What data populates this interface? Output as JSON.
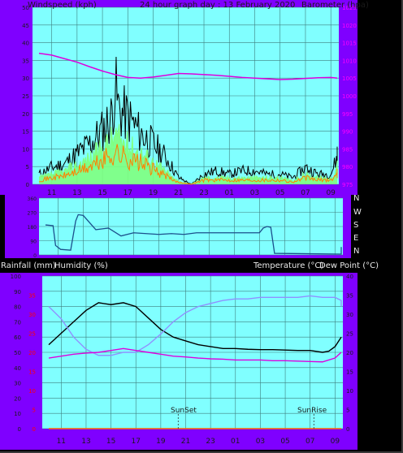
{
  "header": {
    "left": "Windspeed (kph)",
    "title": "24 hour graph day : 13 February 2020",
    "right": "Barometer (hpa)"
  },
  "bottom_header": {
    "rain_label": "Rainfall (mm)",
    "humidity_label": "Humidity (%)",
    "temp_label": "Temperature (°C)",
    "dew_label": "Dew Point (°C)"
  },
  "compass_labels": [
    "N",
    "W",
    "S",
    "E",
    "N"
  ],
  "x_ticks": [
    "11",
    "13",
    "15",
    "17",
    "19",
    "21",
    "23",
    "01",
    "03",
    "05",
    "07",
    "09"
  ],
  "events": {
    "sunset": "SunSet",
    "sunrise": "SunRise"
  },
  "colors": {
    "background_frame": "#7f00ff",
    "plot_bg": "#80ffff",
    "grid": "#3f7f7f",
    "wind_gust": "#000000",
    "wind_avg": "#7fff7f",
    "wind_low": "#ff8000",
    "barometer": "#dd00dd",
    "direction": "#1c4f8c",
    "temperature": "#000000",
    "humidity": "#9090ff",
    "dew_point": "#dd00dd",
    "rain_axis": "#ff0000"
  },
  "chart_data": [
    {
      "type": "line",
      "name": "wind-barometer",
      "x_ticks": [
        "11",
        "13",
        "15",
        "17",
        "19",
        "21",
        "23",
        "01",
        "03",
        "05",
        "07",
        "09"
      ],
      "left_axis": {
        "label": "Windspeed (kph)",
        "ticks": [
          0,
          5,
          10,
          15,
          20,
          25,
          30,
          35,
          40,
          45,
          50
        ],
        "ylim": [
          0,
          50
        ]
      },
      "right_axis": {
        "label": "Barometer (hpa)",
        "ticks": [
          975,
          980,
          985,
          990,
          995,
          1000,
          1005,
          1010,
          1015,
          1020,
          1025
        ],
        "ylim": [
          975,
          1025
        ]
      },
      "series": [
        {
          "name": "gust",
          "hours": [
            0,
            1,
            2,
            3,
            4,
            5,
            5.7,
            6,
            6.3,
            7,
            8,
            9,
            10,
            10.5,
            11,
            12,
            13,
            14,
            15,
            16,
            17,
            18,
            19,
            20,
            21,
            22,
            23,
            24
          ],
          "values": [
            3,
            5,
            6,
            9,
            12,
            16,
            20,
            29,
            22,
            20,
            15,
            12,
            8,
            5,
            2,
            0,
            3,
            4,
            3,
            4,
            4,
            3,
            3,
            2,
            5,
            3,
            3,
            13
          ]
        },
        {
          "name": "average",
          "hours": [
            0,
            1,
            2,
            3,
            4,
            5,
            6,
            7,
            8,
            9,
            10,
            10.5,
            11,
            12,
            13,
            14,
            15,
            16,
            17,
            18,
            19,
            20,
            21,
            22,
            23,
            24
          ],
          "values": [
            2,
            3,
            4,
            6,
            8,
            11,
            15,
            12,
            10,
            7,
            4,
            2,
            1,
            0,
            2,
            2,
            2,
            2,
            2,
            2,
            2,
            1,
            3,
            2,
            2,
            7
          ]
        },
        {
          "name": "barometer",
          "hours": [
            0,
            1,
            2,
            3,
            4,
            5,
            6,
            7,
            8,
            9,
            10,
            11,
            12,
            13,
            14,
            15,
            16,
            17,
            18,
            19,
            20,
            21,
            22,
            23,
            24
          ],
          "values": [
            1012,
            1011.5,
            1010.5,
            1009.5,
            1008.2,
            1007,
            1006,
            1005.2,
            1005,
            1005.3,
            1005.8,
            1006.3,
            1006.2,
            1006,
            1005.8,
            1005.5,
            1005.2,
            1005,
            1004.8,
            1004.6,
            1004.7,
            1004.9,
            1005.1,
            1005.2,
            1005
          ]
        }
      ]
    },
    {
      "type": "line",
      "name": "wind-direction",
      "y_ticks": [
        0,
        90,
        180,
        270,
        360
      ],
      "ylim": [
        0,
        360
      ],
      "compass": [
        "N",
        "W",
        "S",
        "E",
        "N"
      ],
      "series": [
        {
          "name": "direction",
          "hours": [
            0,
            0.6,
            0.8,
            1.2,
            2,
            2.4,
            2.6,
            3,
            4,
            5,
            6,
            7,
            8,
            9,
            10,
            11,
            12,
            13,
            14,
            15,
            16,
            17,
            17.3,
            17.6,
            17.9,
            18.2,
            23.5,
            23.6,
            24
          ],
          "values": [
            190,
            185,
            60,
            35,
            30,
            215,
            255,
            250,
            160,
            170,
            120,
            140,
            135,
            130,
            135,
            130,
            140,
            140,
            140,
            140,
            140,
            140,
            170,
            180,
            175,
            10,
            5,
            45,
            50
          ]
        }
      ]
    },
    {
      "type": "line",
      "name": "temp-humidity",
      "left_axis": {
        "labels": [
          "Rainfall (mm)",
          "Humidity (%)"
        ],
        "humidity_ticks": [
          0,
          10,
          20,
          30,
          40,
          50,
          60,
          70,
          80,
          90,
          100
        ],
        "rain_ticks": [
          0,
          5,
          10,
          15,
          20,
          25,
          30,
          35
        ]
      },
      "right_axis": {
        "labels": [
          "Temperature (°C)",
          "Dew Point (°C)"
        ],
        "ticks": [
          0,
          5,
          10,
          15,
          20,
          25,
          30,
          35,
          40
        ],
        "ylim": [
          0,
          40
        ]
      },
      "series": [
        {
          "name": "temperature",
          "hours": [
            0,
            1,
            2,
            3,
            4,
            5,
            6,
            7,
            8,
            9,
            10,
            11,
            12,
            13,
            14,
            15,
            16,
            17,
            18,
            19,
            20,
            21,
            22,
            22.5,
            23,
            24
          ],
          "values": [
            22,
            25,
            28,
            31,
            33,
            32.5,
            33,
            32,
            29,
            26,
            24,
            23,
            22,
            21.5,
            21,
            21,
            20.8,
            20.7,
            20.7,
            20.6,
            20.5,
            20.5,
            20,
            20.3,
            21.5,
            24
          ]
        },
        {
          "name": "humidity",
          "hours": [
            0,
            1,
            2,
            3,
            4,
            5,
            6,
            7,
            8,
            9,
            10,
            11,
            12,
            13,
            14,
            15,
            16,
            17,
            18,
            19,
            20,
            21,
            22,
            23,
            23.5,
            24
          ],
          "values": [
            80,
            72,
            60,
            52,
            48,
            48,
            50,
            50,
            55,
            62,
            70,
            76,
            80,
            82,
            84,
            85,
            85,
            86,
            86,
            86,
            86,
            87,
            86,
            86,
            84,
            80
          ]
        },
        {
          "name": "dew point",
          "hours": [
            0,
            1,
            2,
            3,
            4,
            5,
            6,
            7,
            8,
            9,
            10,
            11,
            12,
            13,
            14,
            15,
            16,
            17,
            18,
            19,
            20,
            21,
            22,
            23,
            24
          ],
          "values": [
            18.5,
            19,
            19.5,
            19.8,
            20,
            20.5,
            21,
            20.5,
            20,
            19.5,
            19,
            18.8,
            18.5,
            18.3,
            18.2,
            18,
            18,
            18,
            17.8,
            17.8,
            17.7,
            17.6,
            17.5,
            18.5,
            20
          ]
        },
        {
          "name": "rainfall",
          "hours": [
            0,
            24
          ],
          "values": [
            0,
            0
          ]
        }
      ]
    }
  ]
}
